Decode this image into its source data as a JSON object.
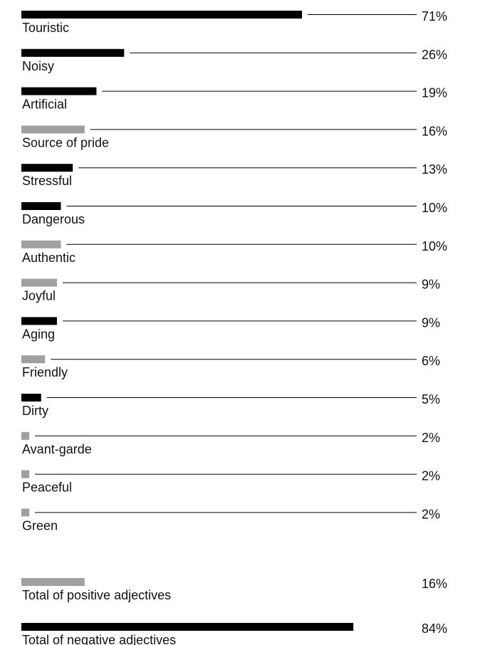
{
  "chart_data": {
    "type": "bar",
    "orientation": "horizontal",
    "unit": "%",
    "colors": {
      "negative": "#000000",
      "positive": "#a0a0a0"
    },
    "items": [
      {
        "label": "Touristic",
        "value": 71,
        "value_label": "71%",
        "sentiment": "negative"
      },
      {
        "label": "Noisy",
        "value": 26,
        "value_label": "26%",
        "sentiment": "negative"
      },
      {
        "label": "Artificial",
        "value": 19,
        "value_label": "19%",
        "sentiment": "negative"
      },
      {
        "label": "Source of pride",
        "value": 16,
        "value_label": "16%",
        "sentiment": "positive"
      },
      {
        "label": "Stressful",
        "value": 13,
        "value_label": "13%",
        "sentiment": "negative"
      },
      {
        "label": "Dangerous",
        "value": 10,
        "value_label": "10%",
        "sentiment": "negative"
      },
      {
        "label": "Authentic",
        "value": 10,
        "value_label": "10%",
        "sentiment": "positive"
      },
      {
        "label": "Joyful",
        "value": 9,
        "value_label": "9%",
        "sentiment": "positive"
      },
      {
        "label": "Aging",
        "value": 9,
        "value_label": "9%",
        "sentiment": "negative"
      },
      {
        "label": "Friendly",
        "value": 6,
        "value_label": "6%",
        "sentiment": "positive"
      },
      {
        "label": "Dirty",
        "value": 5,
        "value_label": "5%",
        "sentiment": "negative"
      },
      {
        "label": "Avant-garde",
        "value": 2,
        "value_label": "2%",
        "sentiment": "positive"
      },
      {
        "label": "Peaceful",
        "value": 2,
        "value_label": "2%",
        "sentiment": "positive"
      },
      {
        "label": "Green",
        "value": 2,
        "value_label": "2%",
        "sentiment": "positive"
      }
    ],
    "totals": [
      {
        "label": "Total of positive adjectives",
        "value": 16,
        "value_label": "16%",
        "sentiment": "positive"
      },
      {
        "label": "Total of negative adjectives",
        "value": 84,
        "value_label": "84%",
        "sentiment": "negative"
      }
    ]
  }
}
